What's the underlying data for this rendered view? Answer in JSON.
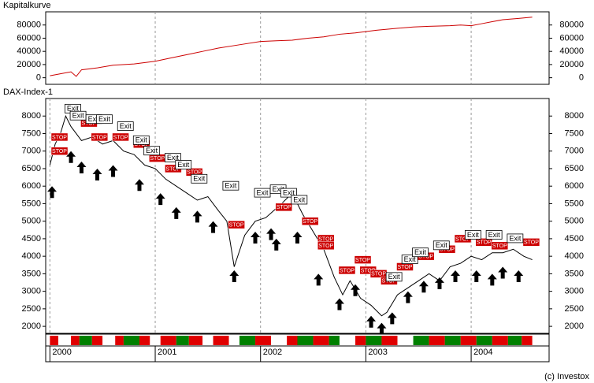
{
  "chart_data": [
    {
      "type": "line",
      "title": "Kapitalkurve",
      "color": "#cc0000",
      "x": [
        2000.0,
        2000.1,
        2000.2,
        2000.25,
        2000.3,
        2000.45,
        2000.6,
        2000.8,
        2001.0,
        2001.15,
        2001.3,
        2001.45,
        2001.6,
        2001.8,
        2002.0,
        2002.15,
        2002.3,
        2002.45,
        2002.6,
        2002.75,
        2002.9,
        2003.1,
        2003.3,
        2003.45,
        2003.6,
        2003.8,
        2003.9,
        2004.0,
        2004.1,
        2004.2,
        2004.3,
        2004.45,
        2004.58
      ],
      "values": [
        3000,
        6000,
        9000,
        2000,
        12000,
        15000,
        19000,
        21000,
        25000,
        30000,
        35000,
        40000,
        45000,
        50000,
        55000,
        56000,
        57000,
        60000,
        62000,
        66000,
        68000,
        72000,
        75000,
        77000,
        78000,
        79000,
        80000,
        79000,
        82000,
        85000,
        88000,
        90000,
        92000
      ],
      "xlim": [
        1999.96,
        2004.74
      ],
      "xticks": [
        2001,
        2002,
        2003,
        2004
      ],
      "ylim": [
        -10000,
        100000
      ],
      "yticks": [
        0,
        20000,
        40000,
        60000,
        80000
      ],
      "grid": "x"
    },
    {
      "type": "line",
      "title": "DAX-Index-1",
      "color": "#000000",
      "x": [
        2000.0,
        2000.05,
        2000.1,
        2000.15,
        2000.2,
        2000.3,
        2000.4,
        2000.5,
        2000.6,
        2000.7,
        2000.8,
        2000.9,
        2001.0,
        2001.1,
        2001.2,
        2001.3,
        2001.4,
        2001.5,
        2001.6,
        2001.68,
        2001.75,
        2001.85,
        2001.95,
        2002.05,
        2002.2,
        2002.3,
        2002.4,
        2002.5,
        2002.6,
        2002.7,
        2002.78,
        2002.85,
        2002.95,
        2003.05,
        2003.15,
        2003.2,
        2003.3,
        2003.4,
        2003.5,
        2003.6,
        2003.7,
        2003.8,
        2003.9,
        2004.0,
        2004.1,
        2004.2,
        2004.3,
        2004.4,
        2004.5,
        2004.58
      ],
      "values": [
        6600,
        7200,
        7500,
        8000,
        7700,
        7300,
        7400,
        7200,
        7300,
        7000,
        6900,
        6600,
        6500,
        6200,
        6000,
        5800,
        5600,
        5700,
        5300,
        5000,
        3700,
        4600,
        5000,
        5100,
        5500,
        5800,
        5200,
        4700,
        4200,
        3400,
        2900,
        3300,
        2800,
        2600,
        2300,
        2400,
        2900,
        3100,
        3300,
        3500,
        3300,
        3700,
        3800,
        4000,
        3900,
        4100,
        4100,
        4200,
        4000,
        3900
      ],
      "xlim": [
        1999.96,
        2004.74
      ],
      "xticks": [
        2000,
        2001,
        2002,
        2003,
        2004
      ],
      "ylim": [
        1800,
        8500
      ],
      "yticks": [
        2000,
        2500,
        3000,
        3500,
        4000,
        4500,
        5000,
        5500,
        6000,
        6500,
        7000,
        7500,
        8000
      ],
      "grid": "x",
      "entries": {
        "x": [
          2000.02,
          2000.2,
          2000.3,
          2000.45,
          2000.6,
          2000.85,
          2001.05,
          2001.2,
          2001.4,
          2001.55,
          2001.75,
          2001.95,
          2002.1,
          2002.15,
          2002.35,
          2002.55,
          2002.75,
          2002.9,
          2003.05,
          2003.15,
          2003.25,
          2003.4,
          2003.55,
          2003.7,
          2003.85,
          2004.05,
          2004.2,
          2004.3,
          2004.45
        ],
        "y": [
          6000,
          7000,
          6700,
          6500,
          6600,
          6200,
          5800,
          5400,
          5300,
          5000,
          3600,
          4700,
          4800,
          4500,
          4700,
          3500,
          2800,
          3200,
          2300,
          2100,
          2400,
          3000,
          3300,
          3400,
          3600,
          3600,
          3500,
          3700,
          3600
        ]
      },
      "stops": {
        "label": "STOP",
        "x": [
          2000.02,
          2000.02,
          2000.3,
          2000.4,
          2000.6,
          2000.8,
          2000.95,
          2001.1,
          2001.3,
          2001.7,
          2002.15,
          2002.4,
          2002.55,
          2002.55,
          2002.75,
          2002.9,
          2002.95,
          2003.05,
          2003.15,
          2003.3,
          2003.5,
          2003.7,
          2003.85,
          2004.05,
          2004.2,
          2004.5
        ],
        "y": [
          7400,
          7000,
          7800,
          7400,
          7400,
          7200,
          6800,
          6500,
          6400,
          4900,
          5400,
          5000,
          4500,
          4300,
          3600,
          3900,
          3600,
          3500,
          3300,
          3700,
          4000,
          4200,
          4500,
          4400,
          4300,
          4400
        ]
      },
      "exits": {
        "label": "Exit",
        "x": [
          2000.15,
          2000.2,
          2000.35,
          2000.45,
          2000.65,
          2000.8,
          2000.9,
          2001.1,
          2001.2,
          2001.35,
          2001.65,
          2001.95,
          2002.1,
          2002.2,
          2002.3,
          2003.2,
          2003.35,
          2003.45,
          2003.65,
          2003.95,
          2004.15,
          2004.35
        ],
        "y": [
          8200,
          8000,
          7900,
          7900,
          7700,
          7300,
          7000,
          6800,
          6600,
          6200,
          6000,
          5800,
          5900,
          5800,
          5600,
          3400,
          3900,
          4100,
          4300,
          4600,
          4600,
          4500
        ]
      },
      "strip": {
        "edges": [
          2000.0,
          2000.08,
          2000.2,
          2000.28,
          2000.4,
          2000.5,
          2000.62,
          2000.7,
          2000.85,
          2000.95,
          2001.05,
          2001.2,
          2001.32,
          2001.45,
          2001.55,
          2001.7,
          2001.8,
          2001.95,
          2002.1,
          2002.25,
          2002.35,
          2002.5,
          2002.65,
          2002.75,
          2002.9,
          2003.0,
          2003.15,
          2003.3,
          2003.45,
          2003.6,
          2003.75,
          2003.9,
          2004.05,
          2004.2,
          2004.35,
          2004.48,
          2004.58
        ],
        "colors": [
          "#e00000",
          "#ffffff",
          "#e00000",
          "#008000",
          "#e00000",
          "#ffffff",
          "#e00000",
          "#008000",
          "#e00000",
          "#ffffff",
          "#e00000",
          "#008000",
          "#e00000",
          "#ffffff",
          "#e00000",
          "#ffffff",
          "#008000",
          "#e00000",
          "#ffffff",
          "#e00000",
          "#008000",
          "#e00000",
          "#008000",
          "#ffffff",
          "#e00000",
          "#008000",
          "#e00000",
          "#ffffff",
          "#008000",
          "#e00000",
          "#008000",
          "#e00000",
          "#008000",
          "#e00000",
          "#008000",
          "#e00000"
        ]
      }
    }
  ],
  "footer": "(c) Investox"
}
